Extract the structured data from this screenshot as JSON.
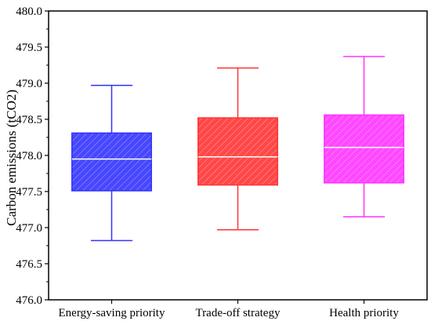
{
  "chart_data": {
    "type": "box",
    "ylabel": "Carbon emissions (tCO2)",
    "xlabel": "",
    "ylim": [
      476.0,
      480.0
    ],
    "yticks": [
      "476.0",
      "476.5",
      "477.0",
      "477.5",
      "478.0",
      "478.5",
      "479.0",
      "479.5",
      "480.0"
    ],
    "grid": false,
    "legend": "none",
    "categories": [
      "Energy-saving priority",
      "Trade-off strategy",
      "Health priority"
    ],
    "boxes": [
      {
        "category": "Energy-saving priority",
        "min": 476.82,
        "q1": 477.51,
        "median": 477.95,
        "q3": 478.31,
        "max": 478.97,
        "color": "#3333ff"
      },
      {
        "category": "Trade-off strategy",
        "min": 476.97,
        "q1": 477.59,
        "median": 477.98,
        "q3": 478.52,
        "max": 479.21,
        "color": "#ff3333"
      },
      {
        "category": "Health priority",
        "min": 477.15,
        "q1": 477.62,
        "median": 478.11,
        "q3": 478.56,
        "max": 479.37,
        "color": "#ff33ff"
      }
    ]
  }
}
